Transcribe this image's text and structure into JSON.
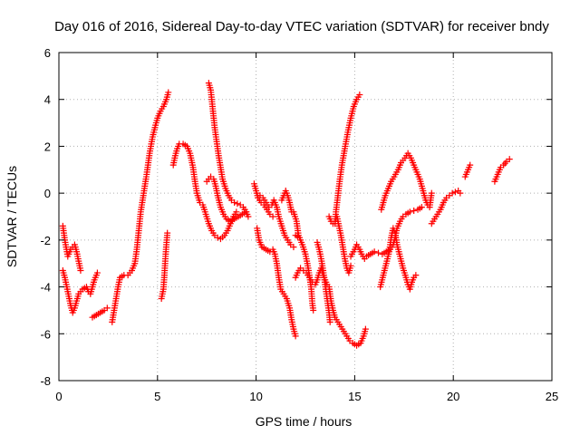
{
  "chart_data": {
    "type": "scatter",
    "title": "Day 016 of 2016, Sidereal Day-to-day VTEC variation (SDTVAR) for receiver bndy",
    "xlabel": "GPS time / hours",
    "ylabel": "SDTVAR / TECUs",
    "xlim": [
      0,
      25
    ],
    "ylim": [
      -8,
      6
    ],
    "xticks": [
      0,
      5,
      10,
      15,
      20,
      25
    ],
    "yticks": [
      -8,
      -6,
      -4,
      -2,
      0,
      2,
      4,
      6
    ],
    "grid": true,
    "marker": "+",
    "color": "#ff0000",
    "series": [
      {
        "points": [
          [
            0.2,
            -1.4
          ],
          [
            0.3,
            -2.0
          ],
          [
            0.45,
            -2.7
          ],
          [
            0.6,
            -2.4
          ],
          [
            0.8,
            -2.2
          ],
          [
            0.9,
            -2.5
          ],
          [
            1.0,
            -2.9
          ],
          [
            1.1,
            -3.3
          ]
        ]
      },
      {
        "points": [
          [
            0.2,
            -3.3
          ],
          [
            0.3,
            -3.6
          ],
          [
            0.4,
            -4.0
          ],
          [
            0.5,
            -4.4
          ],
          [
            0.6,
            -4.8
          ],
          [
            0.7,
            -5.1
          ],
          [
            0.8,
            -4.9
          ],
          [
            0.9,
            -4.6
          ],
          [
            1.0,
            -4.3
          ],
          [
            1.2,
            -4.1
          ],
          [
            1.4,
            -4.0
          ],
          [
            1.5,
            -4.2
          ],
          [
            1.6,
            -4.3
          ],
          [
            1.7,
            -4.0
          ],
          [
            1.8,
            -3.7
          ],
          [
            1.95,
            -3.4
          ]
        ]
      },
      {
        "points": [
          [
            1.7,
            -5.3
          ],
          [
            1.9,
            -5.2
          ],
          [
            2.1,
            -5.1
          ],
          [
            2.3,
            -5.0
          ],
          [
            2.45,
            -4.9
          ]
        ]
      },
      {
        "points": [
          [
            2.7,
            -5.5
          ],
          [
            2.8,
            -5.0
          ],
          [
            2.9,
            -4.5
          ],
          [
            3.0,
            -4.0
          ],
          [
            3.1,
            -3.6
          ],
          [
            3.3,
            -3.5
          ],
          [
            3.5,
            -3.5
          ],
          [
            3.7,
            -3.3
          ],
          [
            3.85,
            -3.0
          ],
          [
            3.95,
            -2.4
          ],
          [
            4.05,
            -1.6
          ],
          [
            4.15,
            -0.8
          ],
          [
            4.3,
            0.0
          ],
          [
            4.45,
            0.8
          ],
          [
            4.6,
            1.7
          ],
          [
            4.75,
            2.4
          ],
          [
            4.9,
            2.9
          ],
          [
            5.0,
            3.2
          ],
          [
            5.15,
            3.5
          ],
          [
            5.3,
            3.7
          ],
          [
            5.45,
            4.0
          ],
          [
            5.55,
            4.3
          ]
        ]
      },
      {
        "points": [
          [
            5.2,
            -4.5
          ],
          [
            5.3,
            -4.1
          ],
          [
            5.35,
            -3.5
          ],
          [
            5.4,
            -2.8
          ],
          [
            5.45,
            -2.2
          ],
          [
            5.5,
            -1.7
          ]
        ]
      },
      {
        "points": [
          [
            5.8,
            1.2
          ],
          [
            5.9,
            1.6
          ],
          [
            6.0,
            1.9
          ],
          [
            6.1,
            2.1
          ],
          [
            6.3,
            2.1
          ],
          [
            6.5,
            2.0
          ],
          [
            6.65,
            1.7
          ],
          [
            6.8,
            1.1
          ],
          [
            6.9,
            0.5
          ],
          [
            7.0,
            0.0
          ],
          [
            7.15,
            -0.4
          ],
          [
            7.3,
            -0.5
          ],
          [
            7.45,
            -0.9
          ],
          [
            7.6,
            -1.3
          ],
          [
            7.75,
            -1.6
          ],
          [
            7.9,
            -1.8
          ],
          [
            8.05,
            -1.9
          ],
          [
            8.2,
            -1.95
          ],
          [
            8.4,
            -1.8
          ],
          [
            8.55,
            -1.6
          ],
          [
            8.7,
            -1.3
          ],
          [
            8.85,
            -1.0
          ],
          [
            9.0,
            -0.8
          ]
        ]
      },
      {
        "points": [
          [
            7.6,
            4.7
          ],
          [
            7.7,
            4.4
          ],
          [
            7.8,
            3.6
          ],
          [
            7.9,
            2.8
          ],
          [
            8.0,
            2.2
          ],
          [
            8.1,
            1.6
          ],
          [
            8.2,
            1.1
          ],
          [
            8.3,
            0.6
          ],
          [
            8.45,
            0.2
          ],
          [
            8.6,
            -0.1
          ],
          [
            8.75,
            -0.3
          ],
          [
            8.9,
            -0.4
          ],
          [
            9.05,
            -0.45
          ],
          [
            9.2,
            -0.5
          ],
          [
            9.35,
            -0.6
          ],
          [
            9.5,
            -0.8
          ],
          [
            9.6,
            -1.0
          ]
        ]
      },
      {
        "points": [
          [
            7.5,
            0.5
          ],
          [
            7.7,
            0.7
          ],
          [
            7.85,
            0.6
          ],
          [
            7.95,
            0.3
          ],
          [
            8.05,
            -0.1
          ],
          [
            8.2,
            -0.6
          ],
          [
            8.35,
            -0.9
          ],
          [
            8.5,
            -1.1
          ],
          [
            8.7,
            -1.2
          ],
          [
            8.9,
            -1.1
          ],
          [
            9.1,
            -1.0
          ],
          [
            9.3,
            -0.9
          ],
          [
            9.5,
            -0.8
          ]
        ]
      },
      {
        "points": [
          [
            9.9,
            0.4
          ],
          [
            10.0,
            0.1
          ],
          [
            10.1,
            -0.2
          ],
          [
            10.25,
            -0.4
          ],
          [
            10.4,
            -0.5
          ],
          [
            10.55,
            -0.7
          ],
          [
            10.7,
            -0.9
          ],
          [
            10.85,
            -1.0
          ]
        ]
      },
      {
        "points": [
          [
            10.05,
            -1.5
          ],
          [
            10.15,
            -2.0
          ],
          [
            10.3,
            -2.3
          ],
          [
            10.5,
            -2.4
          ],
          [
            10.7,
            -2.5
          ],
          [
            10.85,
            -2.4
          ],
          [
            10.95,
            -2.6
          ],
          [
            11.05,
            -3.0
          ],
          [
            11.15,
            -3.6
          ],
          [
            11.25,
            -4.1
          ],
          [
            11.4,
            -4.3
          ],
          [
            11.55,
            -4.5
          ],
          [
            11.7,
            -4.9
          ],
          [
            11.8,
            -5.4
          ],
          [
            11.9,
            -5.8
          ],
          [
            12.0,
            -6.1
          ]
        ]
      },
      {
        "points": [
          [
            10.1,
            -0.2
          ],
          [
            10.2,
            -0.1
          ],
          [
            10.35,
            -0.2
          ],
          [
            10.5,
            -0.4
          ],
          [
            10.65,
            -0.6
          ],
          [
            10.8,
            -0.5
          ],
          [
            10.9,
            -0.3
          ],
          [
            11.05,
            -0.6
          ],
          [
            11.15,
            -1.0
          ],
          [
            11.3,
            -1.4
          ],
          [
            11.45,
            -1.8
          ],
          [
            11.6,
            -2.0
          ],
          [
            11.75,
            -2.2
          ],
          [
            11.9,
            -2.3
          ]
        ]
      },
      {
        "points": [
          [
            11.3,
            -0.3
          ],
          [
            11.4,
            -0.1
          ],
          [
            11.5,
            0.1
          ],
          [
            11.6,
            -0.1
          ],
          [
            11.7,
            -0.4
          ],
          [
            11.8,
            -0.8
          ],
          [
            11.9,
            -0.8
          ],
          [
            12.05,
            -1.2
          ],
          [
            12.15,
            -1.8
          ]
        ]
      },
      {
        "points": [
          [
            12.0,
            -1.8
          ],
          [
            12.2,
            -1.9
          ],
          [
            12.35,
            -2.2
          ],
          [
            12.5,
            -2.6
          ],
          [
            12.6,
            -3.0
          ],
          [
            12.7,
            -3.5
          ],
          [
            12.8,
            -4.1
          ],
          [
            12.85,
            -4.7
          ],
          [
            12.9,
            -5.0
          ]
        ]
      },
      {
        "points": [
          [
            12.0,
            -3.6
          ],
          [
            12.1,
            -3.4
          ],
          [
            12.25,
            -3.2
          ],
          [
            12.4,
            -3.3
          ],
          [
            12.55,
            -3.4
          ],
          [
            12.7,
            -3.6
          ],
          [
            12.85,
            -3.8
          ],
          [
            13.0,
            -3.9
          ],
          [
            13.1,
            -3.7
          ],
          [
            13.2,
            -3.4
          ],
          [
            13.3,
            -3.2
          ],
          [
            13.4,
            -3.5
          ],
          [
            13.5,
            -3.7
          ],
          [
            13.6,
            -3.9
          ]
        ]
      },
      {
        "points": [
          [
            13.1,
            -2.1
          ],
          [
            13.2,
            -2.4
          ],
          [
            13.3,
            -2.8
          ],
          [
            13.4,
            -3.3
          ],
          [
            13.5,
            -3.9
          ],
          [
            13.6,
            -4.5
          ],
          [
            13.7,
            -5.1
          ],
          [
            13.75,
            -5.5
          ]
        ]
      },
      {
        "points": [
          [
            13.7,
            -1.0
          ],
          [
            13.8,
            -1.2
          ],
          [
            13.9,
            -1.3
          ],
          [
            14.0,
            -1.2
          ],
          [
            14.1,
            -1.0
          ],
          [
            14.2,
            -1.4
          ],
          [
            14.3,
            -1.8
          ],
          [
            14.4,
            -2.3
          ],
          [
            14.5,
            -2.8
          ],
          [
            14.6,
            -3.2
          ],
          [
            14.7,
            -3.4
          ],
          [
            14.8,
            -3.1
          ]
        ]
      },
      {
        "points": [
          [
            14.0,
            -1.3
          ],
          [
            14.05,
            -0.8
          ],
          [
            14.15,
            -0.1
          ],
          [
            14.25,
            0.6
          ],
          [
            14.35,
            1.2
          ],
          [
            14.5,
            1.9
          ],
          [
            14.65,
            2.6
          ],
          [
            14.8,
            3.2
          ],
          [
            14.95,
            3.7
          ],
          [
            15.1,
            4.0
          ],
          [
            15.25,
            4.2
          ]
        ]
      },
      {
        "points": [
          [
            13.7,
            -4.0
          ],
          [
            13.8,
            -4.6
          ],
          [
            13.9,
            -5.0
          ],
          [
            14.0,
            -5.3
          ],
          [
            14.15,
            -5.5
          ],
          [
            14.3,
            -5.7
          ],
          [
            14.45,
            -5.9
          ],
          [
            14.6,
            -6.1
          ],
          [
            14.75,
            -6.3
          ],
          [
            14.9,
            -6.4
          ],
          [
            15.1,
            -6.5
          ],
          [
            15.3,
            -6.4
          ],
          [
            15.45,
            -6.1
          ],
          [
            15.55,
            -5.8
          ]
        ]
      },
      {
        "points": [
          [
            14.8,
            -2.7
          ],
          [
            15.0,
            -2.4
          ],
          [
            15.1,
            -2.2
          ],
          [
            15.25,
            -2.4
          ],
          [
            15.35,
            -2.6
          ],
          [
            15.5,
            -2.8
          ],
          [
            15.6,
            -2.7
          ],
          [
            15.8,
            -2.6
          ],
          [
            16.0,
            -2.5
          ],
          [
            16.2,
            -2.55
          ],
          [
            16.4,
            -2.6
          ],
          [
            16.6,
            -2.5
          ],
          [
            16.8,
            -2.4
          ],
          [
            16.95,
            -2.2
          ],
          [
            17.05,
            -1.9
          ],
          [
            17.15,
            -1.5
          ],
          [
            17.3,
            -1.2
          ],
          [
            17.45,
            -1.0
          ],
          [
            17.6,
            -0.9
          ],
          [
            17.8,
            -0.8
          ],
          [
            18.0,
            -0.75
          ],
          [
            18.2,
            -0.7
          ],
          [
            18.4,
            -0.6
          ]
        ]
      },
      {
        "points": [
          [
            16.3,
            -4.0
          ],
          [
            16.45,
            -3.5
          ],
          [
            16.6,
            -3.0
          ],
          [
            16.75,
            -2.5
          ],
          [
            16.85,
            -1.9
          ],
          [
            16.95,
            -1.5
          ],
          [
            17.05,
            -1.7
          ],
          [
            17.15,
            -2.2
          ],
          [
            17.3,
            -2.7
          ],
          [
            17.45,
            -3.2
          ],
          [
            17.6,
            -3.6
          ],
          [
            17.7,
            -3.9
          ],
          [
            17.8,
            -4.1
          ],
          [
            17.9,
            -3.8
          ],
          [
            18.0,
            -3.6
          ],
          [
            18.1,
            -3.5
          ]
        ]
      },
      {
        "points": [
          [
            16.35,
            -0.7
          ],
          [
            16.45,
            -0.4
          ],
          [
            16.55,
            -0.1
          ],
          [
            16.7,
            0.2
          ],
          [
            16.85,
            0.5
          ],
          [
            17.0,
            0.7
          ],
          [
            17.2,
            1.0
          ],
          [
            17.35,
            1.3
          ],
          [
            17.55,
            1.5
          ],
          [
            17.7,
            1.7
          ],
          [
            17.85,
            1.5
          ],
          [
            18.0,
            1.2
          ],
          [
            18.15,
            0.9
          ],
          [
            18.3,
            0.6
          ],
          [
            18.4,
            0.3
          ],
          [
            18.5,
            0.0
          ],
          [
            18.6,
            -0.3
          ],
          [
            18.7,
            -0.5
          ],
          [
            18.8,
            -0.6
          ],
          [
            18.9,
            0.0
          ]
        ]
      },
      {
        "points": [
          [
            18.9,
            -1.3
          ],
          [
            19.05,
            -1.1
          ],
          [
            19.2,
            -0.9
          ],
          [
            19.35,
            -0.7
          ],
          [
            19.5,
            -0.4
          ],
          [
            19.65,
            -0.2
          ],
          [
            19.8,
            -0.1
          ],
          [
            19.95,
            0.0
          ],
          [
            20.1,
            0.05
          ],
          [
            20.25,
            0.1
          ],
          [
            20.35,
            0.0
          ]
        ]
      },
      {
        "points": [
          [
            20.6,
            0.7
          ],
          [
            20.7,
            0.9
          ],
          [
            20.8,
            1.1
          ],
          [
            20.85,
            1.2
          ]
        ]
      },
      {
        "points": [
          [
            22.1,
            0.5
          ],
          [
            22.2,
            0.7
          ],
          [
            22.3,
            0.9
          ],
          [
            22.4,
            1.1
          ],
          [
            22.55,
            1.2
          ],
          [
            22.7,
            1.35
          ],
          [
            22.85,
            1.45
          ]
        ]
      }
    ]
  }
}
